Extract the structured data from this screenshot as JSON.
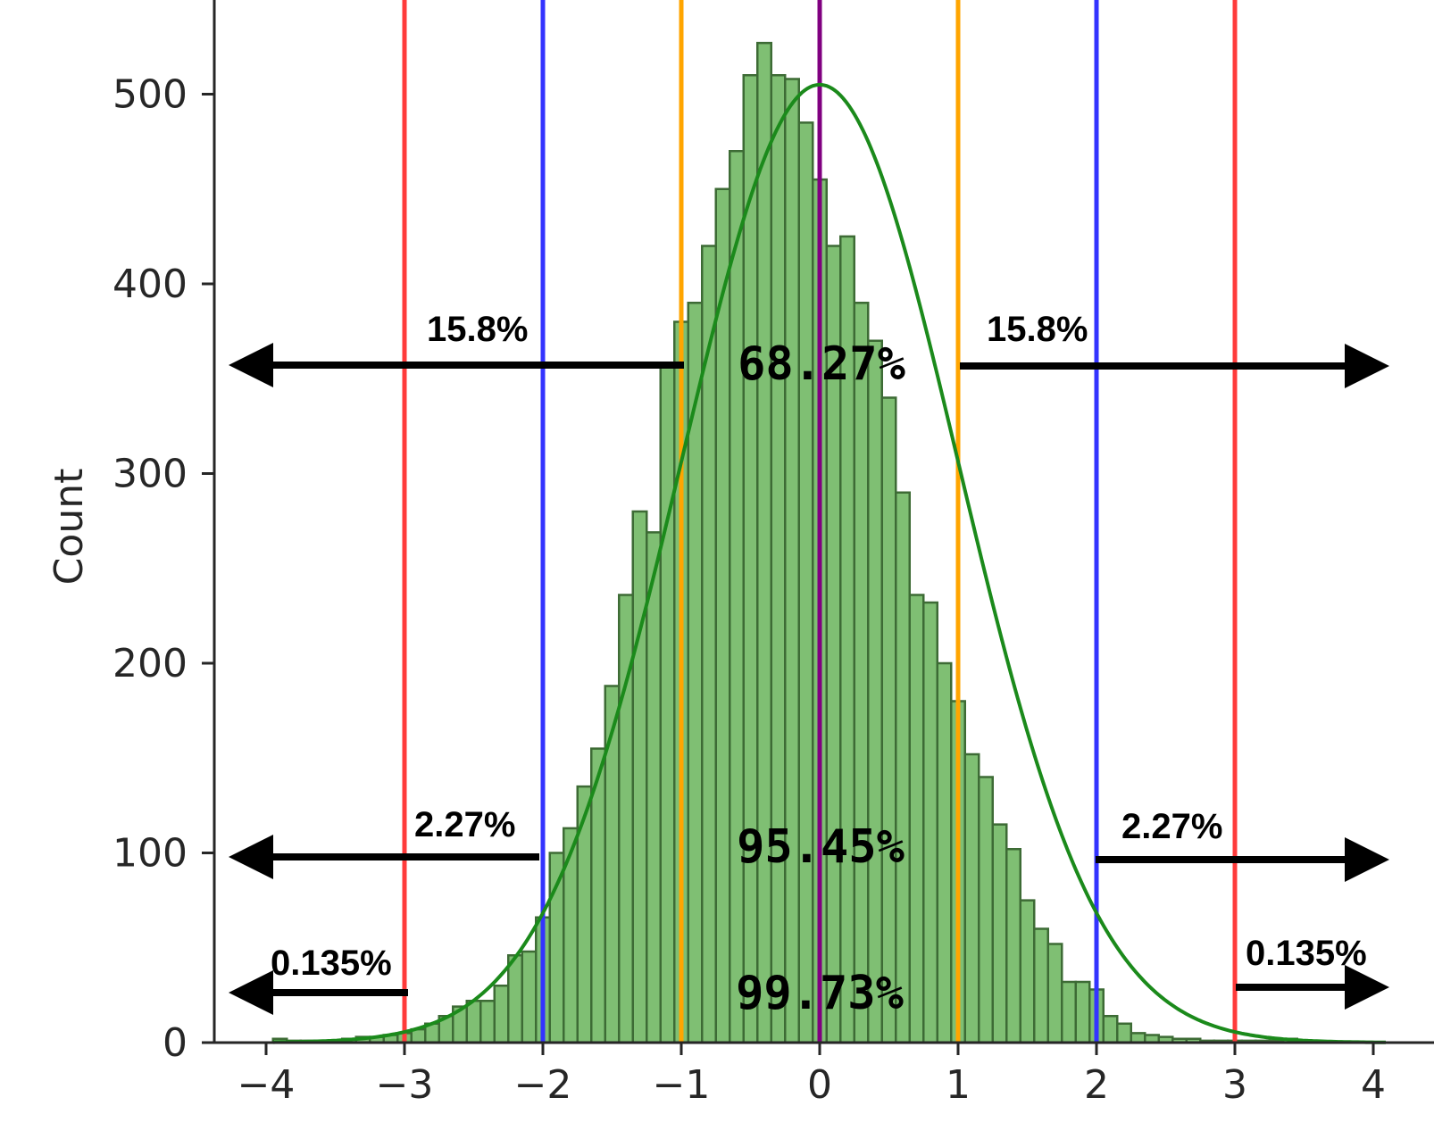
{
  "chart_data": {
    "type": "bar",
    "xlabel": "",
    "ylabel": "Count",
    "xlim": [
      -4.2,
      4.4
    ],
    "ylim": [
      0,
      550
    ],
    "xticks": [
      -4,
      -3,
      -2,
      -1,
      0,
      1,
      2,
      3,
      4
    ],
    "xtick_labels": [
      "−4",
      "−3",
      "−2",
      "−1",
      "0",
      "1",
      "2",
      "3",
      "4"
    ],
    "yticks": [
      0,
      100,
      200,
      300,
      400,
      500
    ],
    "ytick_labels": [
      "0",
      "100",
      "200",
      "300",
      "400",
      "500"
    ],
    "bin_width": 0.1,
    "bin_start": -3.95,
    "counts": [
      2,
      1,
      1,
      1,
      1,
      2,
      3,
      3,
      4,
      5,
      7,
      10,
      14,
      19,
      22,
      22,
      30,
      46,
      48,
      66,
      100,
      113,
      135,
      155,
      188,
      236,
      280,
      269,
      358,
      380,
      390,
      420,
      450,
      470,
      510,
      527,
      510,
      508,
      485,
      455,
      420,
      425,
      390,
      370,
      340,
      290,
      236,
      232,
      200,
      180,
      152,
      140,
      115,
      102,
      75,
      60,
      52,
      32,
      32,
      28,
      14,
      10,
      5,
      4,
      3,
      2,
      2,
      1,
      1,
      1,
      1,
      1,
      1,
      2
    ],
    "kde": {
      "mu": 0.0,
      "sigma": 1.0,
      "peak": 505
    },
    "vlines": [
      {
        "x": -3,
        "color": "#ff3b3b"
      },
      {
        "x": -2,
        "color": "#3333ff"
      },
      {
        "x": -1,
        "color": "#ffa500"
      },
      {
        "x": 0,
        "color": "#800080"
      },
      {
        "x": 1,
        "color": "#ffa500"
      },
      {
        "x": 2,
        "color": "#3333ff"
      },
      {
        "x": 3,
        "color": "#ff3b3b"
      }
    ],
    "colors": {
      "bar_fill": "#7fbf73",
      "bar_edge": "#3d6b35",
      "kde": "#1b8a1b",
      "arrow": "#000000",
      "axis": "#262626"
    }
  },
  "annotations": {
    "left_1sd": "15.8%",
    "right_1sd": "15.8%",
    "center_1sd": "68.27%",
    "left_2sd": "2.27%",
    "right_2sd": "2.27%",
    "center_2sd": "95.45%",
    "left_3sd": "0.135%",
    "right_3sd": "0.135%",
    "center_3sd": "99.73%"
  }
}
